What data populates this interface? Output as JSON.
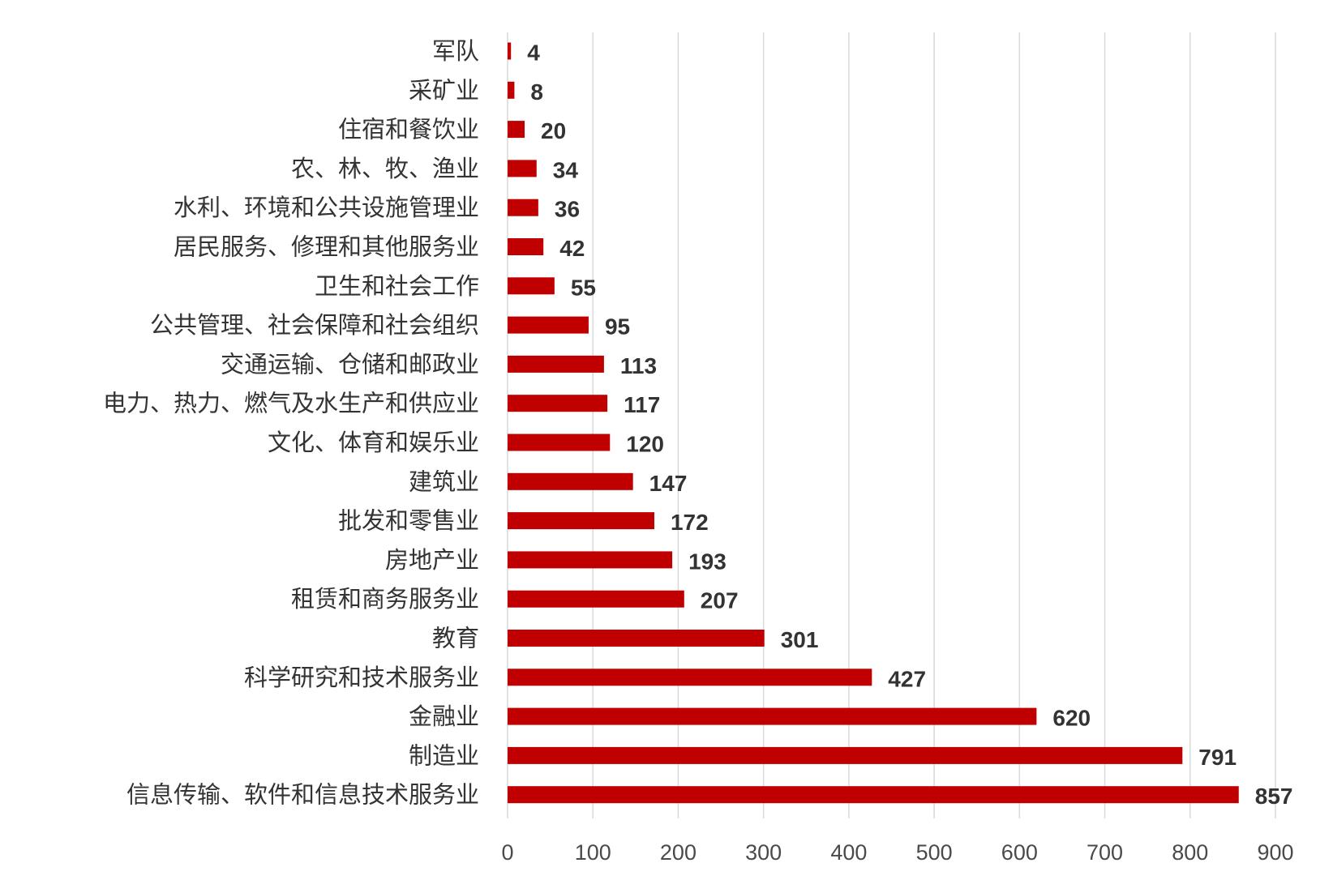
{
  "chart_data": {
    "type": "bar",
    "orientation": "horizontal",
    "title": "",
    "xlabel": "",
    "ylabel": "",
    "xlim": [
      0,
      900
    ],
    "x_ticks": [
      0,
      100,
      200,
      300,
      400,
      500,
      600,
      700,
      800,
      900
    ],
    "grid": "vertical",
    "legend": "none",
    "bar_color": "#c00000",
    "categories": [
      "军队",
      "采矿业",
      "住宿和餐饮业",
      "农、林、牧、渔业",
      "水利、环境和公共设施管理业",
      "居民服务、修理和其他服务业",
      "卫生和社会工作",
      "公共管理、社会保障和社会组织",
      "交通运输、仓储和邮政业",
      "电力、热力、燃气及水生产和供应业",
      "文化、体育和娱乐业",
      "建筑业",
      "批发和零售业",
      "房地产业",
      "租赁和商务服务业",
      "教育",
      "科学研究和技术服务业",
      "金融业",
      "制造业",
      "信息传输、软件和信息技术服务业"
    ],
    "values": [
      4,
      8,
      20,
      34,
      36,
      42,
      55,
      95,
      113,
      117,
      120,
      147,
      172,
      193,
      207,
      301,
      427,
      620,
      791,
      857
    ]
  }
}
